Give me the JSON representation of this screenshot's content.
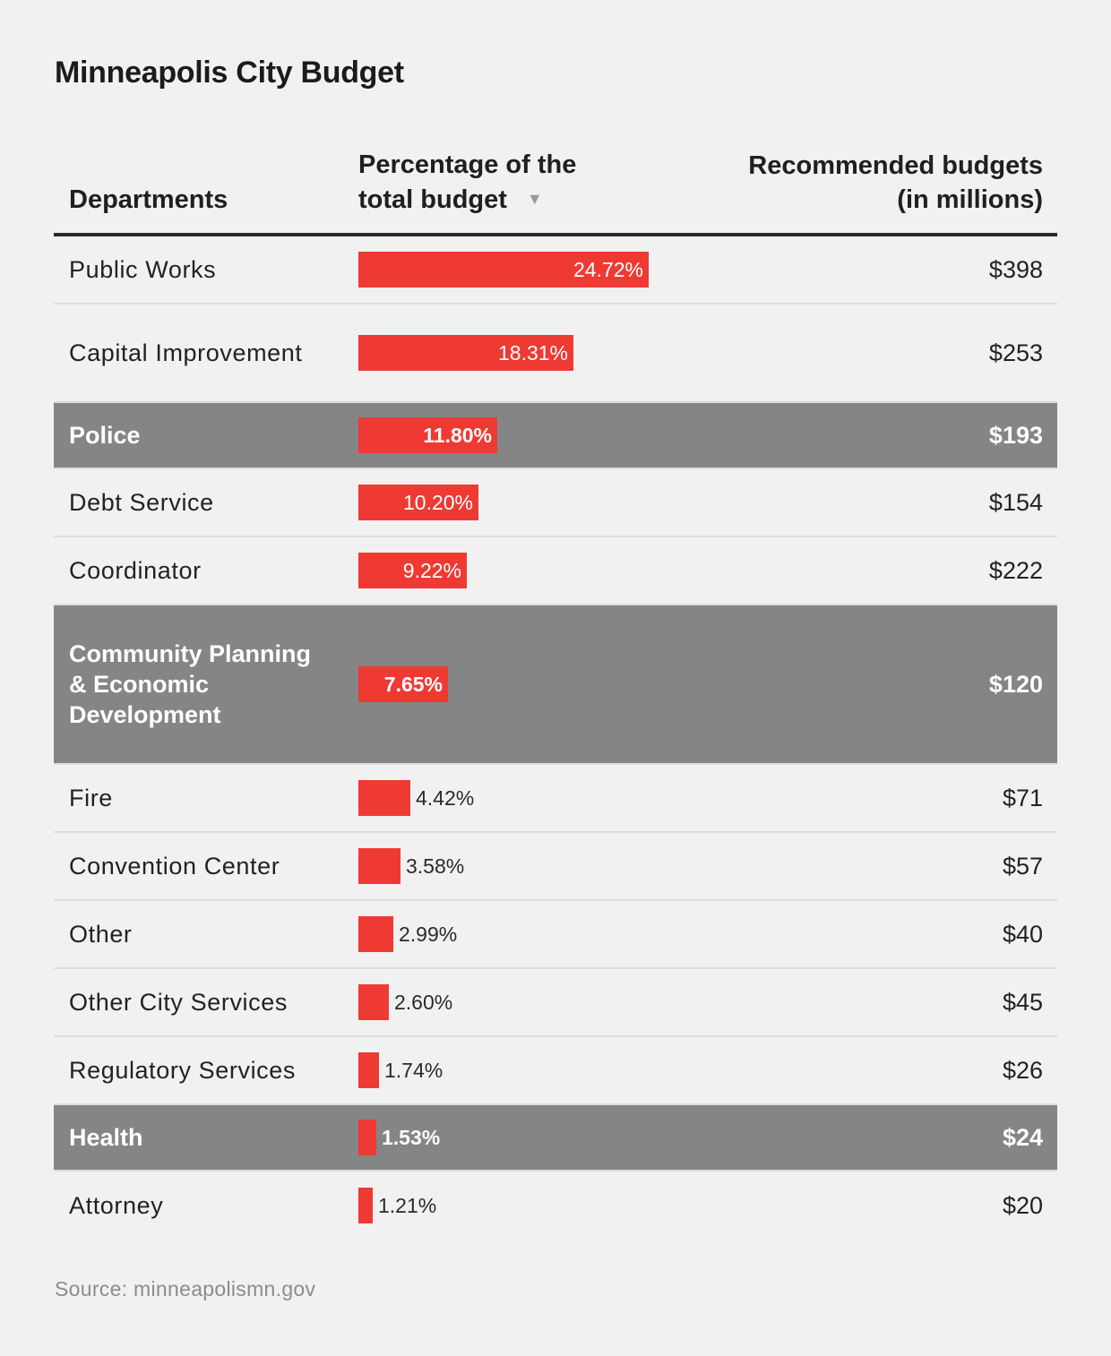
{
  "title": "Minneapolis City Budget",
  "headers": {
    "department": "Departments",
    "percentage_line1": "Percentage of the",
    "percentage_line2": "total budget",
    "sort_icon": "sort-descending-triangle",
    "budget_line1": "Recommended budgets",
    "budget_line2": "(in millions)"
  },
  "source": "Source: minneapolismn.gov",
  "colors": {
    "bar": "#ee3a33",
    "highlight_row": "#858585",
    "background": "#f1f1f1"
  },
  "chart_data": {
    "type": "table",
    "title": "Minneapolis City Budget",
    "columns": [
      "Departments",
      "Percentage of the total budget",
      "Recommended budgets (in millions)"
    ],
    "bar_max_percent": 24.72,
    "rows": [
      {
        "department": "Public Works",
        "percent": 24.72,
        "percent_label": "24.72%",
        "budget": "$398",
        "highlight": false
      },
      {
        "department": "Capital Improvement",
        "percent": 18.31,
        "percent_label": "18.31%",
        "budget": "$253",
        "highlight": false
      },
      {
        "department": "Police",
        "percent": 11.8,
        "percent_label": "11.80%",
        "budget": "$193",
        "highlight": true
      },
      {
        "department": "Debt Service",
        "percent": 10.2,
        "percent_label": "10.20%",
        "budget": "$154",
        "highlight": false
      },
      {
        "department": "Coordinator",
        "percent": 9.22,
        "percent_label": "9.22%",
        "budget": "$222",
        "highlight": false
      },
      {
        "department": "Community Planning & Economic Development",
        "percent": 7.65,
        "percent_label": "7.65%",
        "budget": "$120",
        "highlight": true
      },
      {
        "department": "Fire",
        "percent": 4.42,
        "percent_label": "4.42%",
        "budget": "$71",
        "highlight": false
      },
      {
        "department": "Convention Center",
        "percent": 3.58,
        "percent_label": "3.58%",
        "budget": "$57",
        "highlight": false
      },
      {
        "department": "Other",
        "percent": 2.99,
        "percent_label": "2.99%",
        "budget": "$40",
        "highlight": false
      },
      {
        "department": "Other City Services",
        "percent": 2.6,
        "percent_label": "2.60%",
        "budget": "$45",
        "highlight": false
      },
      {
        "department": "Regulatory Services",
        "percent": 1.74,
        "percent_label": "1.74%",
        "budget": "$26",
        "highlight": false
      },
      {
        "department": "Health",
        "percent": 1.53,
        "percent_label": "1.53%",
        "budget": "$24",
        "highlight": true
      },
      {
        "department": "Attorney",
        "percent": 1.21,
        "percent_label": "1.21%",
        "budget": "$20",
        "highlight": false
      }
    ]
  }
}
